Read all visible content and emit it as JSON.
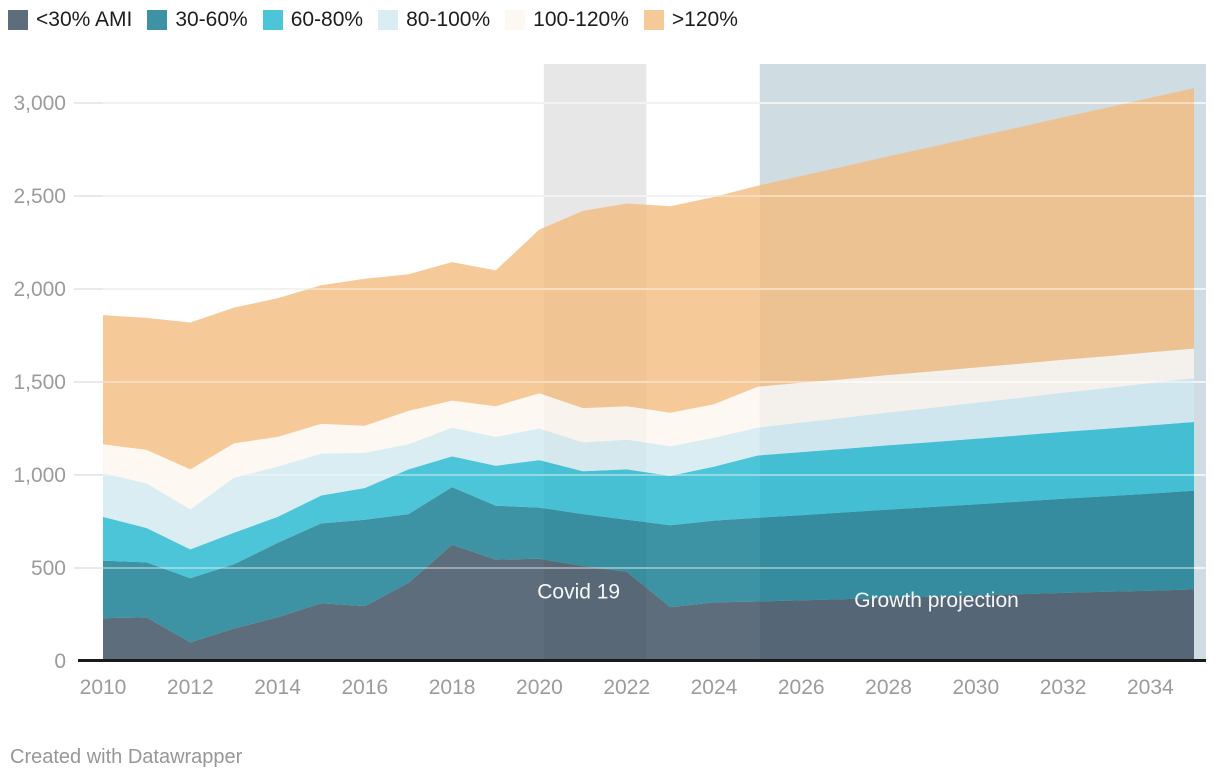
{
  "legend": {
    "items": [
      {
        "label": "<30% AMI",
        "color": "#5e6d7b"
      },
      {
        "label": "30-60%",
        "color": "#3d93a3"
      },
      {
        "label": "60-80%",
        "color": "#4cc5d8"
      },
      {
        "label": "80-100%",
        "color": "#d9edf3"
      },
      {
        "label": "100-120%",
        "color": "#fdf8f2"
      },
      {
        "label": ">120%",
        "color": "#f6c998"
      }
    ]
  },
  "chart_data": {
    "type": "area",
    "stacked": true,
    "title": "",
    "xlabel": "",
    "ylabel": "",
    "grid": true,
    "ylim": [
      0,
      3210
    ],
    "x": [
      2010,
      2011,
      2012,
      2013,
      2014,
      2015,
      2016,
      2017,
      2018,
      2019,
      2020,
      2021,
      2022,
      2023,
      2024,
      2025,
      2026,
      2027,
      2028,
      2029,
      2030,
      2031,
      2032,
      2033,
      2034,
      2035
    ],
    "series": [
      {
        "name": "<30% AMI",
        "fill": "#36485a",
        "legend_color": "#5e6d7b",
        "values": [
          230,
          235,
          100,
          175,
          235,
          310,
          295,
          420,
          625,
          545,
          550,
          510,
          480,
          290,
          315,
          320,
          326,
          333,
          340,
          346,
          352,
          359,
          366,
          372,
          378,
          385
        ]
      },
      {
        "name": "30-60%",
        "fill": "#0d788c",
        "legend_color": "#3d93a3",
        "values": [
          310,
          295,
          345,
          345,
          400,
          430,
          465,
          370,
          310,
          290,
          275,
          280,
          280,
          440,
          440,
          450,
          458,
          466,
          474,
          482,
          490,
          498,
          506,
          514,
          522,
          530
        ]
      },
      {
        "name": "60-80%",
        "fill": "#21b7ce",
        "legend_color": "#4cc5d8",
        "values": [
          235,
          185,
          155,
          170,
          140,
          150,
          170,
          240,
          165,
          215,
          255,
          230,
          270,
          265,
          290,
          335,
          339,
          342,
          346,
          349,
          353,
          356,
          360,
          363,
          367,
          370
        ]
      },
      {
        "name": "80-100%",
        "fill": "#d0e9f0",
        "legend_color": "#d9edf3",
        "values": [
          235,
          240,
          215,
          295,
          270,
          225,
          190,
          135,
          155,
          155,
          170,
          155,
          160,
          160,
          155,
          150,
          159,
          167,
          176,
          184,
          193,
          201,
          210,
          218,
          227,
          235
        ]
      },
      {
        "name": "100-120%",
        "fill": "#fdf6ef",
        "legend_color": "#fdf8f2",
        "values": [
          155,
          180,
          215,
          185,
          160,
          160,
          145,
          180,
          145,
          165,
          190,
          185,
          180,
          180,
          180,
          220,
          214,
          208,
          202,
          196,
          190,
          184,
          178,
          172,
          166,
          160
        ]
      },
      {
        "name": ">120%",
        "fill": "#f4bc7e",
        "legend_color": "#f6c998",
        "values": [
          695,
          710,
          790,
          730,
          745,
          745,
          790,
          735,
          745,
          730,
          880,
          1060,
          1090,
          1110,
          1115,
          1080,
          1112,
          1144,
          1176,
          1208,
          1240,
          1272,
          1304,
          1336,
          1368,
          1400
        ]
      }
    ],
    "x_ticks": [
      2010,
      2012,
      2014,
      2016,
      2018,
      2020,
      2022,
      2024,
      2026,
      2028,
      2030,
      2032,
      2034
    ],
    "y_ticks": [
      {
        "value": 0,
        "label": "0"
      },
      {
        "value": 500,
        "label": "500"
      },
      {
        "value": 1000,
        "label": "1,000"
      },
      {
        "value": 1500,
        "label": "1,500"
      },
      {
        "value": 2000,
        "label": "2,000"
      },
      {
        "value": 2500,
        "label": "2,500"
      },
      {
        "value": 3000,
        "label": "3,000"
      }
    ],
    "annotations": {
      "ranges": [
        {
          "label": "Covid 19",
          "x0": 2020.1,
          "x1": 2022.45,
          "color": "#e7e7e7",
          "label_x": 2020.9,
          "label_y": 335
        },
        {
          "label": "Growth projection",
          "x0": 2025.05,
          "x1": 2035.28,
          "color": "#cfdde3",
          "label_x": 2029.1,
          "label_y": 290
        }
      ]
    },
    "style": {
      "gridline_color": "#e9e9e9",
      "gridline_overlay": "rgba(255,255,255,0.4)",
      "baseline_color": "#1a1a1a",
      "axis_text_color": "#9b9b9b",
      "area_opacity": 0.8
    }
  },
  "footer": {
    "text": "Created with Datawrapper"
  }
}
